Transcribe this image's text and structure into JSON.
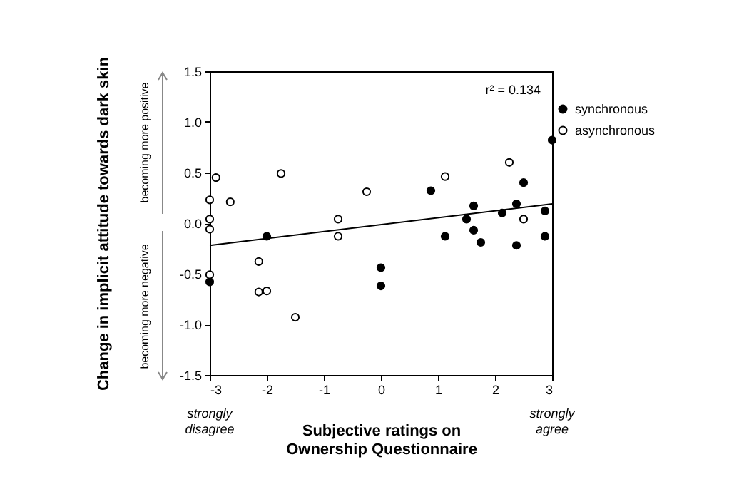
{
  "chart_data": {
    "type": "scatter",
    "xlabel": "Subjective ratings on\nOwnership Questionnaire",
    "ylabel": "Change in implicit attitude towards dark skin",
    "annotations": [
      "r² = 0.134",
      "becoming more positive",
      "becoming more negative",
      "strongly\ndisagree",
      "strongly\nagree"
    ],
    "xlim": [
      -3,
      3
    ],
    "xticks": [
      -3,
      -2,
      -1,
      0,
      1,
      2,
      3
    ],
    "ylim": [
      -1.5,
      1.5
    ],
    "yticks": [
      {
        "value": -1.5,
        "label": "-1.5"
      },
      {
        "value": -1,
        "label": "-1.0"
      },
      {
        "value": -0.5,
        "label": "-0.5"
      },
      {
        "value": 0,
        "label": "0.0"
      },
      {
        "value": 0.5,
        "label": "0.5"
      },
      {
        "value": 1,
        "label": "1.0"
      },
      {
        "value": 1.5,
        "label": "1.5"
      }
    ],
    "grid": false,
    "legend": "right",
    "series": [
      {
        "name": "synchronous",
        "color": "#000000",
        "marker": "circle",
        "x": [
          -2,
          -3,
          0,
          0,
          0.875,
          1.125,
          1.5,
          1.625,
          1.625,
          1.75,
          2.125,
          2.375,
          2.375,
          2.5,
          2.875,
          2.875,
          3
        ],
        "values": [
          -0.13,
          -0.58,
          -0.44,
          -0.62,
          0.32,
          -0.13,
          0.04,
          0.17,
          -0.07,
          -0.19,
          0.1,
          0.19,
          -0.22,
          0.4,
          0.12,
          -0.13,
          0.82
        ]
      },
      {
        "name": "asynchronous",
        "color": "#ffffff",
        "marker": "circle",
        "x": [
          -2.89,
          -3,
          -2.64,
          -1.75,
          -3,
          -3,
          -2.14,
          -3,
          -2.14,
          -2,
          -1.5,
          -0.75,
          -0.75,
          -0.25,
          1.125,
          2.25,
          2.5
        ],
        "values": [
          0.45,
          0.23,
          0.21,
          0.49,
          0.04,
          -0.06,
          -0.38,
          -0.51,
          -0.68,
          -0.67,
          -0.93,
          0.04,
          -0.13,
          0.31,
          0.46,
          0.6,
          0.04
        ]
      },
      {
        "type": "line",
        "color": "#000000",
        "x": [
          -3,
          3
        ],
        "values": [
          -0.22,
          0.19
        ]
      }
    ]
  }
}
